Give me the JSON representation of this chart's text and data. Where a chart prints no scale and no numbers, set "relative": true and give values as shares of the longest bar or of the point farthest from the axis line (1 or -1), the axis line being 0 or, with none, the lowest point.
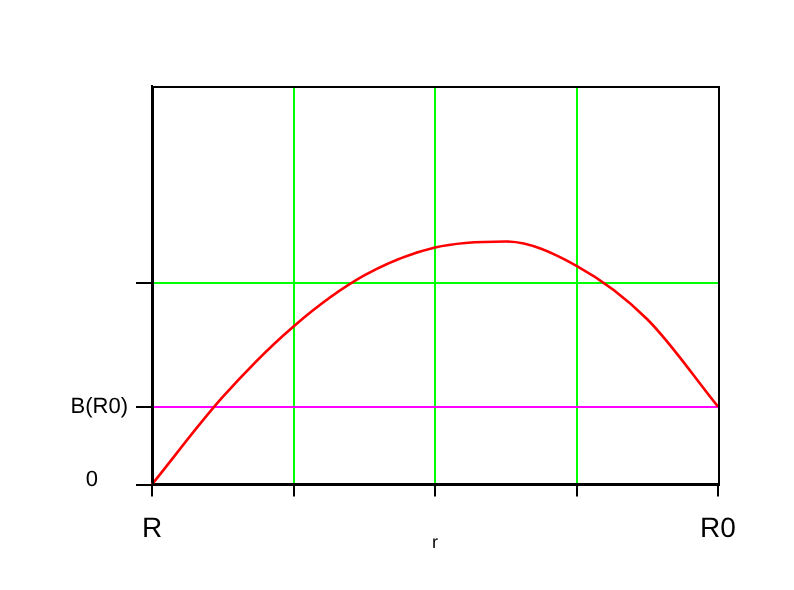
{
  "chart_data": {
    "type": "line",
    "relative": true,
    "xlabel": "r",
    "categories": [
      "R",
      null,
      null,
      null,
      null,
      null,
      null,
      null,
      "R0"
    ],
    "series": [
      {
        "color": "#ff0000",
        "values": [
          0,
          0.36,
          0.65,
          0.86,
          0.975,
          1,
          0.9,
          0.68,
          0.32
        ]
      }
    ],
    "ref_lines": [
      {
        "axis": "y",
        "value": 0.32,
        "label": "B(R0)",
        "color": "#ff00ff"
      },
      {
        "axis": "y",
        "value": 0.83,
        "label": null,
        "color": "#00ff00"
      }
    ],
    "annotations": [
      "0"
    ],
    "grid": "x",
    "legend": false,
    "marker": "none",
    "line_style": "solid"
  }
}
